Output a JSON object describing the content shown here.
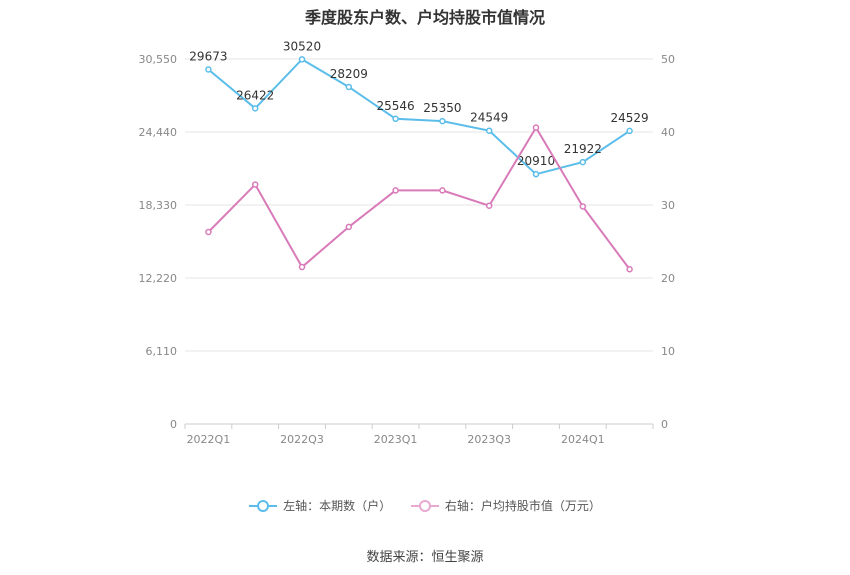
{
  "chart_data": {
    "type": "line",
    "title": "季度股东户数、户均持股市值情况",
    "source": "数据来源：恒生聚源",
    "categories": [
      "2022Q1",
      "2022Q2",
      "2022Q3",
      "2022Q4",
      "2023Q1",
      "2023Q2",
      "2023Q3",
      "2023Q4",
      "2024Q1",
      "2024Q2"
    ],
    "x_tick_labels": [
      "2022Q1",
      "2022Q3",
      "2023Q1",
      "2023Q3",
      "2024Q1"
    ],
    "left_axis": {
      "ticks": [
        "0",
        "6,110",
        "12,220",
        "18,330",
        "24,440",
        "30,550"
      ],
      "ylim": [
        0,
        30550
      ]
    },
    "right_axis": {
      "ticks": [
        "0",
        "10",
        "20",
        "30",
        "40",
        "50"
      ],
      "ylim": [
        0,
        50
      ]
    },
    "grid": true,
    "legend_position": "bottom",
    "series": [
      {
        "name": "左轴：本期数（户）",
        "axis": "left",
        "color": "#5bbdea",
        "values": [
          29673,
          26422,
          30520,
          28209,
          25546,
          25350,
          24549,
          20910,
          21922,
          24529
        ],
        "labels": [
          "29673",
          "26422",
          "30520",
          "28209",
          "25546",
          "25350",
          "24549",
          "20910",
          "21922",
          "24529"
        ]
      },
      {
        "name": "右轴：户均持股市值（万元）",
        "axis": "right",
        "color": "#d97ab8",
        "values": [
          26.3,
          32.8,
          21.5,
          27.0,
          32.0,
          32.0,
          29.9,
          40.6,
          29.8,
          21.2
        ]
      }
    ]
  }
}
